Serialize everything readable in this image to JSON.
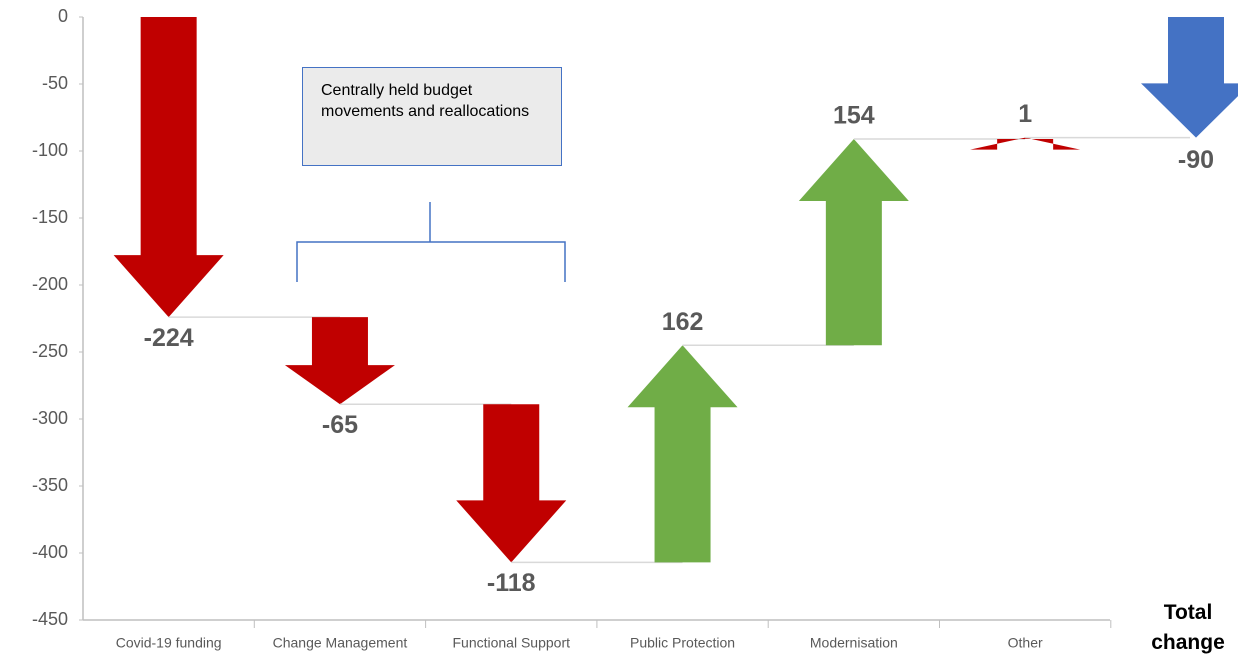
{
  "chart_data": {
    "type": "waterfall-arrows",
    "categories": [
      "Covid-19 funding",
      "Change Management",
      "Functional Support",
      "Public Protection",
      "Modernisation",
      "Other"
    ],
    "values": [
      -224,
      -65,
      -118,
      162,
      154,
      1
    ],
    "colors": [
      "#c00000",
      "#c00000",
      "#c00000",
      "#70ad47",
      "#70ad47",
      "#c00000"
    ],
    "total": {
      "category": "Total change",
      "value": -90,
      "color": "#4472c4"
    },
    "ylim": [
      -450,
      0
    ],
    "yticks": [
      0,
      -50,
      -100,
      -150,
      -200,
      -250,
      -300,
      -350,
      -400,
      -450
    ],
    "annotation": "Centrally held budget movements and reallocations"
  }
}
